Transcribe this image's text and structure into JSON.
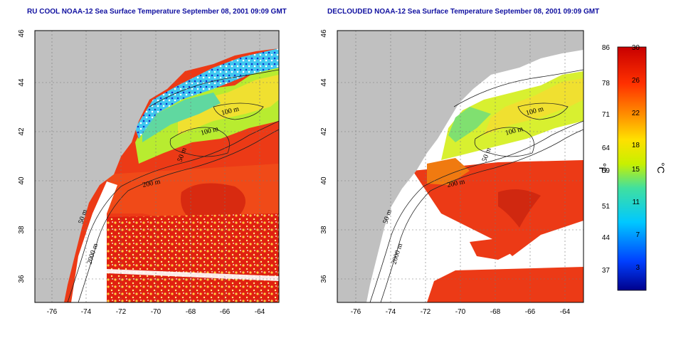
{
  "panels": [
    {
      "title": "RU COOL NOAA-12 Sea Surface Temperature September 08, 2001 09:09 GMT",
      "contour_labels": [
        "100 m",
        "100 m",
        "50 m",
        "200 m",
        "50 m",
        "2000 m"
      ]
    },
    {
      "title": "DECLOUDED NOAA-12 Sea Surface Temperature September 08, 2001 09:09 GMT",
      "contour_labels": [
        "100 m",
        "100 m",
        "50 m",
        "200 m",
        "50 m",
        "2000 m"
      ]
    }
  ],
  "axes": {
    "lon_ticks": [
      "-76",
      "-74",
      "-72",
      "-70",
      "-68",
      "-66",
      "-64"
    ],
    "lat_ticks": [
      "36",
      "38",
      "40",
      "42",
      "44",
      "46"
    ]
  },
  "colorbar": {
    "fahrenheit_ticks": [
      "86",
      "78",
      "71",
      "64",
      "59",
      "51",
      "44",
      "37"
    ],
    "celsius_ticks": [
      "30",
      "26",
      "22",
      "18",
      "15",
      "11",
      "7",
      "3"
    ],
    "unit_f": "°F",
    "unit_c": "°C",
    "colors": [
      "#00008c",
      "#0040ff",
      "#00c8ff",
      "#40e0a0",
      "#c8f000",
      "#ffe000",
      "#ff9000",
      "#ff3000",
      "#c80000"
    ]
  }
}
